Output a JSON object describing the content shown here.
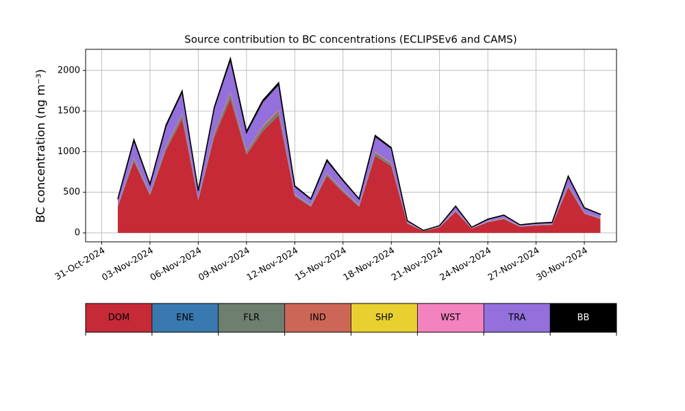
{
  "chart_data": {
    "type": "stacked_area",
    "title": "Source contribution to BC concentrations (ECLIPSEv6 and CAMS)",
    "y_label": "BC concentration (ng m⁻³)",
    "x": [
      "2024-11-01",
      "2024-11-02",
      "2024-11-03",
      "2024-11-04",
      "2024-11-05",
      "2024-11-06",
      "2024-11-07",
      "2024-11-08",
      "2024-11-09",
      "2024-11-10",
      "2024-11-11",
      "2024-11-12",
      "2024-11-13",
      "2024-11-14",
      "2024-11-15",
      "2024-11-16",
      "2024-11-17",
      "2024-11-18",
      "2024-11-19",
      "2024-11-20",
      "2024-11-21",
      "2024-11-22",
      "2024-11-23",
      "2024-11-24",
      "2024-11-25",
      "2024-11-26",
      "2024-11-27",
      "2024-11-28",
      "2024-11-29",
      "2024-11-30",
      "2024-12-01"
    ],
    "series": [
      {
        "name": "DOM",
        "color": "#c62a37",
        "values": [
          320,
          880,
          460,
          1020,
          1400,
          400,
          1180,
          1650,
          960,
          1250,
          1450,
          450,
          320,
          700,
          500,
          320,
          950,
          820,
          115,
          20,
          68,
          260,
          52,
          130,
          170,
          75,
          90,
          98,
          560,
          235,
          170
        ]
      },
      {
        "name": "ENE",
        "color": "#3a78b0",
        "values": [
          3,
          3,
          3,
          3,
          3,
          3,
          3,
          3,
          3,
          3,
          3,
          3,
          3,
          3,
          3,
          3,
          3,
          3,
          3,
          3,
          3,
          3,
          3,
          3,
          3,
          3,
          3,
          3,
          3,
          3,
          3
        ]
      },
      {
        "name": "FLR",
        "color": "#6e7f70",
        "values": [
          10,
          29,
          15,
          33,
          44,
          13,
          39,
          54,
          31,
          41,
          46,
          15,
          11,
          23,
          16,
          11,
          30,
          26,
          4,
          1,
          2,
          8,
          2,
          4,
          5,
          2,
          3,
          3,
          17,
          8,
          6
        ]
      },
      {
        "name": "IND",
        "color": "#cc6656",
        "values": [
          4,
          12,
          6,
          13,
          18,
          5,
          16,
          22,
          13,
          16,
          18,
          6,
          4,
          9,
          7,
          4,
          12,
          10,
          2,
          1,
          1,
          3,
          1,
          2,
          2,
          1,
          1,
          1,
          7,
          3,
          2
        ]
      },
      {
        "name": "SHP",
        "color": "#e8d030",
        "values": [
          1,
          1,
          1,
          1,
          1,
          1,
          1,
          1,
          1,
          1,
          1,
          1,
          1,
          1,
          1,
          1,
          1,
          1,
          1,
          1,
          1,
          1,
          1,
          1,
          1,
          1,
          1,
          1,
          1,
          1,
          1
        ]
      },
      {
        "name": "WST",
        "color": "#f283bf",
        "values": [
          2,
          2,
          2,
          2,
          2,
          2,
          2,
          2,
          2,
          2,
          2,
          2,
          2,
          2,
          2,
          2,
          2,
          2,
          2,
          2,
          2,
          2,
          2,
          2,
          2,
          2,
          2,
          2,
          2,
          2,
          2
        ]
      },
      {
        "name": "TRA",
        "color": "#9370db",
        "values": [
          76,
          211,
          107,
          244,
          270,
          92,
          300,
          400,
          225,
          300,
          310,
          96,
          75,
          150,
          115,
          76,
          190,
          180,
          22,
          2,
          12,
          50,
          8,
          26,
          35,
          15,
          18,
          20,
          104,
          55,
          44
        ]
      },
      {
        "name": "BB",
        "color": "#000000",
        "values": [
          4,
          12,
          6,
          14,
          12,
          4,
          9,
          18,
          15,
          17,
          20,
          7,
          4,
          12,
          6,
          3,
          12,
          8,
          1,
          0,
          1,
          3,
          1,
          2,
          2,
          1,
          2,
          2,
          6,
          3,
          2
        ]
      }
    ],
    "xlim": [
      "2024-10-30",
      "2024-12-02"
    ],
    "xticks": [
      {
        "value": "2024-10-31",
        "label": "31-Oct-2024"
      },
      {
        "value": "2024-11-03",
        "label": "03-Nov-2024"
      },
      {
        "value": "2024-11-06",
        "label": "06-Nov-2024"
      },
      {
        "value": "2024-11-09",
        "label": "09-Nov-2024"
      },
      {
        "value": "2024-11-12",
        "label": "12-Nov-2024"
      },
      {
        "value": "2024-11-15",
        "label": "15-Nov-2024"
      },
      {
        "value": "2024-11-18",
        "label": "18-Nov-2024"
      },
      {
        "value": "2024-11-21",
        "label": "21-Nov-2024"
      },
      {
        "value": "2024-11-24",
        "label": "24-Nov-2024"
      },
      {
        "value": "2024-11-27",
        "label": "27-Nov-2024"
      },
      {
        "value": "2024-11-30",
        "label": "30-Nov-2024"
      }
    ],
    "ylim": [
      -110,
      2260
    ],
    "yticks": [
      0,
      500,
      1000,
      1500,
      2000
    ],
    "grid": true
  }
}
